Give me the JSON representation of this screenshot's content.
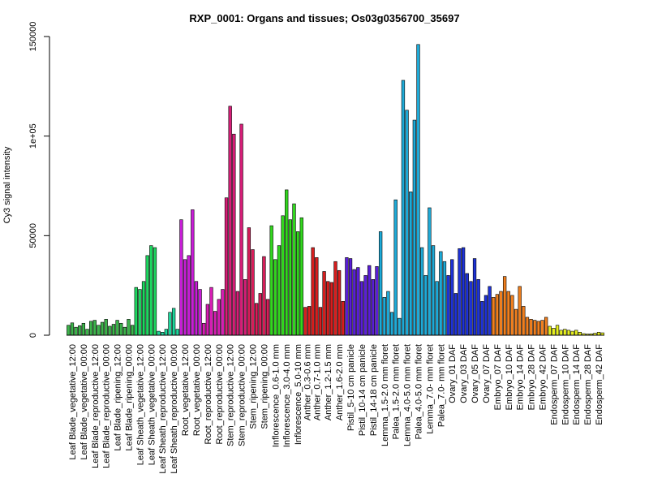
{
  "chart_data": {
    "type": "bar",
    "title": "RXP_0001: Organs and tissues; Os03g0356700_35697",
    "ylabel": "Cy3 signal intensity",
    "xlabel": "",
    "ylim": [
      0,
      150000
    ],
    "yticks": [
      0,
      50000,
      100000,
      150000
    ],
    "ytick_labels": [
      "0",
      "50000",
      "1e+05",
      "150000"
    ],
    "grid": false,
    "groups": [
      {
        "label": "Leaf Blade_vegetative_12:00",
        "color": "#3CB44B",
        "values": [
          5000,
          6200,
          4000
        ]
      },
      {
        "label": "Leaf Blade_vegetative_00:00",
        "color": "#3CB44B",
        "values": [
          4800,
          6000,
          3000
        ]
      },
      {
        "label": "Leaf Blade_reproductive_12:00",
        "color": "#3CB44B",
        "values": [
          7000,
          7500,
          5000
        ]
      },
      {
        "label": "Leaf Blade_reproductive_00:00",
        "color": "#3CB44B",
        "values": [
          6500,
          8000,
          4500
        ]
      },
      {
        "label": "Leaf Blade_ripening_12:00",
        "color": "#3CB44B",
        "values": [
          5500,
          7500,
          6000
        ]
      },
      {
        "label": "Leaf Blade_ripening_00:00",
        "color": "#3CB44B",
        "values": [
          4000,
          8000,
          5000
        ]
      },
      {
        "label": "Leaf Sheath_vegetative_12:00",
        "color": "#1ED760",
        "values": [
          24000,
          23000,
          27000
        ]
      },
      {
        "label": "Leaf Sheath_vegetative_00:00",
        "color": "#1ED760",
        "values": [
          40000,
          45000,
          44000
        ]
      },
      {
        "label": "Leaf Sheath_reproductive_12:00",
        "color": "#1ED79C",
        "values": [
          2000,
          1500,
          3000
        ]
      },
      {
        "label": "Leaf Sheath_reproductive_00:00",
        "color": "#1ED79C",
        "values": [
          11500,
          13500,
          3000
        ]
      },
      {
        "label": "Root_vegetative_12:00",
        "color": "#C81ED7",
        "values": [
          58000,
          38000,
          40000
        ]
      },
      {
        "label": "Root_vegetative_00:00",
        "color": "#C81ED7",
        "values": [
          63000,
          27000,
          23000
        ]
      },
      {
        "label": "Root_reproductive_12:00",
        "color": "#D71EB4",
        "values": [
          6000,
          15500,
          24000
        ]
      },
      {
        "label": "Root_reproductive_00:00",
        "color": "#D71EB4",
        "values": [
          12000,
          18000,
          23000
        ]
      },
      {
        "label": "Stem_reproductive_12:00",
        "color": "#D71E78",
        "values": [
          69000,
          115000,
          101000
        ]
      },
      {
        "label": "Stem_reproductive_00:00",
        "color": "#D71E78",
        "values": [
          22000,
          106000,
          28000
        ]
      },
      {
        "label": "Stem_ripening_12:00",
        "color": "#D71E5A",
        "values": [
          54000,
          43000,
          16000
        ]
      },
      {
        "label": "Stem_ripening_00:00",
        "color": "#D71E5A",
        "values": [
          21000,
          39500,
          18000
        ]
      },
      {
        "label": "Inflorescence_0.6-1.0 mm",
        "color": "#32D71E",
        "values": [
          55000,
          38000,
          45000
        ]
      },
      {
        "label": "Inflorescence_3.0-4.0 mm",
        "color": "#32D71E",
        "values": [
          60000,
          73000,
          58000
        ]
      },
      {
        "label": "Inflorescence_5.0-10 mm",
        "color": "#32D71E",
        "values": [
          66000,
          52000,
          59000
        ]
      },
      {
        "label": "Anther_0.3-0.6 mm",
        "color": "#D71E1E",
        "values": [
          14000,
          14500
        ]
      },
      {
        "label": "Anther_0.7-1.0 mm",
        "color": "#D71E1E",
        "values": [
          44000,
          39000,
          14000
        ]
      },
      {
        "label": "Anther_1.2-1.5 mm",
        "color": "#D71E1E",
        "values": [
          32000,
          27000,
          26500
        ]
      },
      {
        "label": "Anther_1.6-2.0 mm",
        "color": "#D71E1E",
        "values": [
          37000,
          32500,
          17000
        ]
      },
      {
        "label": "Pistil_5-10 cm panicle",
        "color": "#5A1ED7",
        "values": [
          39000,
          38500,
          33000
        ]
      },
      {
        "label": "Pistil_10-14 cm panicle",
        "color": "#5A1ED7",
        "values": [
          34000,
          27000,
          30000
        ]
      },
      {
        "label": "Pistil_14-18 cm panicle",
        "color": "#5A1ED7",
        "values": [
          35000,
          28000,
          34500
        ]
      },
      {
        "label": "Lemma_1.5-2.0 mm floret",
        "color": "#1EAAD7",
        "values": [
          52000,
          19000,
          22000
        ]
      },
      {
        "label": "Palea_1.5-2.0 mm floret",
        "color": "#1EAAD7",
        "values": [
          11500,
          68000,
          8500
        ]
      },
      {
        "label": "Lemma_4.0-5.0 mm floret",
        "color": "#1EAAD7",
        "values": [
          128000,
          113000,
          72000
        ]
      },
      {
        "label": "Palea_4.0-5.0 mm floret",
        "color": "#1EAAD7",
        "values": [
          108000,
          146000,
          44000
        ]
      },
      {
        "label": "Lemma_7.0- mm floret",
        "color": "#1EAAD7",
        "values": [
          30000,
          64000,
          45000
        ]
      },
      {
        "label": "Palea_7.0- mm floret",
        "color": "#1EAAD7",
        "values": [
          27000,
          42000,
          37000
        ]
      },
      {
        "label": "Ovary_01 DAF",
        "color": "#1E32D7",
        "values": [
          30000,
          38000,
          21000
        ]
      },
      {
        "label": "Ovary_03 DAF",
        "color": "#1E32D7",
        "values": [
          43500,
          44000,
          31000
        ]
      },
      {
        "label": "Ovary_05 DAF",
        "color": "#1E32D7",
        "values": [
          27000,
          38500,
          28000
        ]
      },
      {
        "label": "Ovary_07 DAF",
        "color": "#1E32D7",
        "values": [
          17000,
          20000,
          24500
        ]
      },
      {
        "label": "Embryo_07 DAF",
        "color": "#F07F1E",
        "values": [
          19000,
          20500,
          22000
        ]
      },
      {
        "label": "Embryo_10 DAF",
        "color": "#F07F1E",
        "values": [
          29500,
          22000,
          20000
        ]
      },
      {
        "label": "Embryo_14 DAF",
        "color": "#F07F1E",
        "values": [
          13000,
          24500,
          14500
        ]
      },
      {
        "label": "Embryo_28 DAF",
        "color": "#F07F1E",
        "values": [
          9000,
          8000,
          7500
        ]
      },
      {
        "label": "Embryo_42 DAF",
        "color": "#F07F1E",
        "values": [
          7000,
          7500,
          9000
        ]
      },
      {
        "label": "Endosperm_07 DAF",
        "color": "#E6F01E",
        "values": [
          4500,
          3500,
          5000
        ]
      },
      {
        "label": "Endosperm_10 DAF",
        "color": "#E6F01E",
        "values": [
          2500,
          3000,
          2500
        ]
      },
      {
        "label": "Endosperm_14 DAF",
        "color": "#E6F01E",
        "values": [
          2000,
          2500,
          1500
        ]
      },
      {
        "label": "Endosperm_28 DAF",
        "color": "#E6F01E",
        "values": [
          800,
          600,
          700
        ]
      },
      {
        "label": "Endosperm_42 DAF",
        "color": "#E6F01E",
        "values": [
          1000,
          1500,
          1200
        ]
      }
    ]
  }
}
